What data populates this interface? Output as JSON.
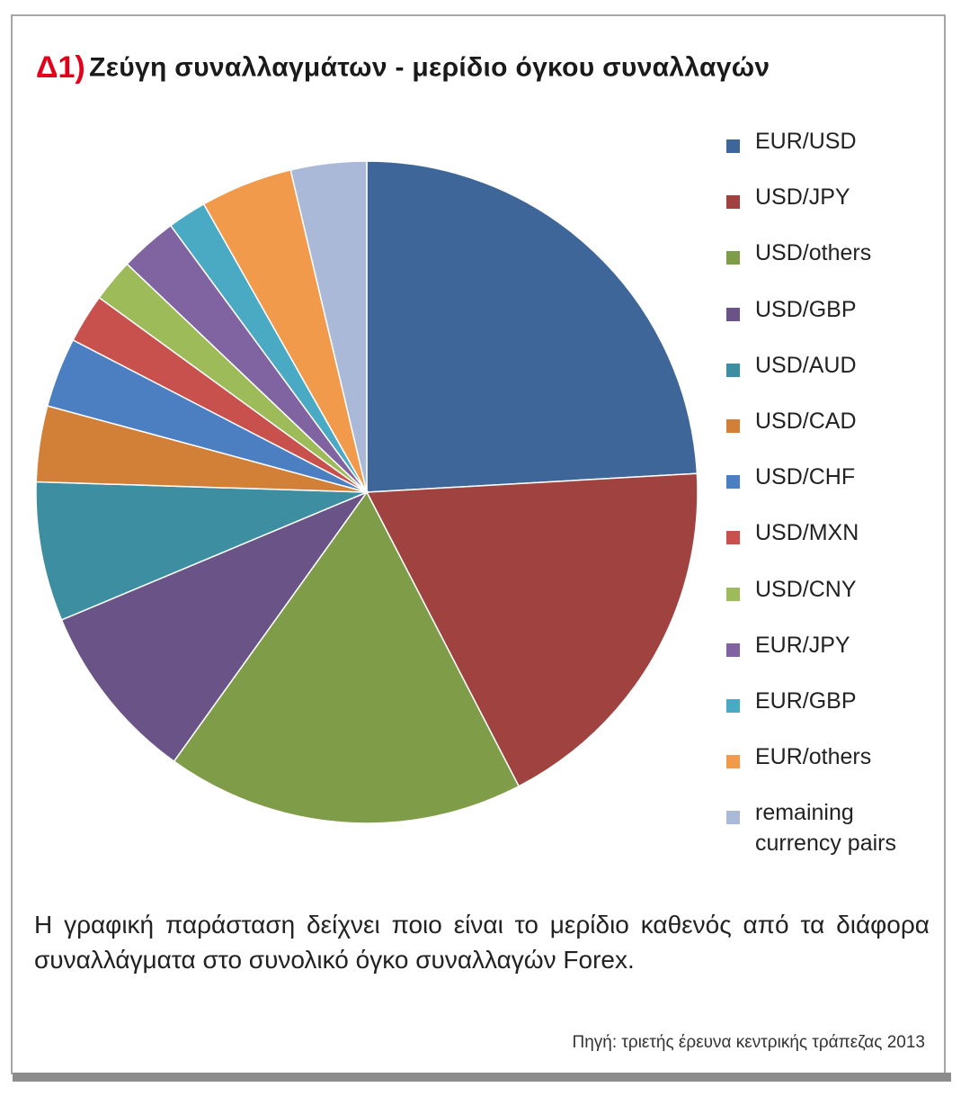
{
  "title": {
    "prefix": "Δ1)",
    "text": "Ζεύγη συναλλαγμάτων - μερίδιο όγκου συναλλαγών"
  },
  "description": "Η γραφική παράσταση δείχνει ποιο είναι το μερίδιο καθενός από τα διάφορα συναλλάγματα στο συνολικό όγκο συναλλαγών Forex.",
  "source": "Πηγή: τριετής έρευνα κεντρικής τράπεζας 2013",
  "chart_data": {
    "type": "pie",
    "legend_position": "right",
    "start_angle": "12 o'clock, clockwise",
    "slices": [
      {
        "label": "EUR/USD",
        "value": 24.1,
        "color": "#3f6699"
      },
      {
        "label": "USD/JPY",
        "value": 18.3,
        "color": "#a04340"
      },
      {
        "label": "USD/others",
        "value": 17.5,
        "color": "#7f9d49"
      },
      {
        "label": "USD/GBP",
        "value": 8.8,
        "color": "#6a5386"
      },
      {
        "label": "USD/AUD",
        "value": 6.8,
        "color": "#3d8ea1"
      },
      {
        "label": "USD/CAD",
        "value": 3.7,
        "color": "#d27f38"
      },
      {
        "label": "USD/CHF",
        "value": 3.4,
        "color": "#4c7fc2"
      },
      {
        "label": "USD/MXN",
        "value": 2.4,
        "color": "#c8504d"
      },
      {
        "label": "USD/CNY",
        "value": 2.1,
        "color": "#9ebb59"
      },
      {
        "label": "EUR/JPY",
        "value": 2.8,
        "color": "#8063a1"
      },
      {
        "label": "EUR/GBP",
        "value": 1.9,
        "color": "#4aaac4"
      },
      {
        "label": "EUR/others",
        "value": 4.5,
        "color": "#f29a4b"
      },
      {
        "label": "remaining\ncurrency pairs",
        "value": 3.7,
        "color": "#aab9d7"
      }
    ]
  }
}
